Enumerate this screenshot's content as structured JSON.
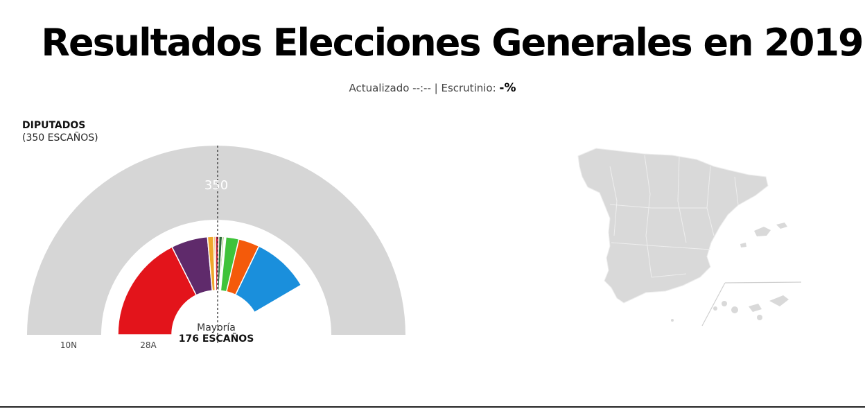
{
  "header": {
    "title": "Resultados Elecciones Generales en 2019",
    "updated_label": "Actualizado --:-- | Escrutinio:",
    "scrutiny_value": "-%"
  },
  "chamber": {
    "title": "DIPUTADOS",
    "subtitle": "(350 ESCAÑOS)",
    "total_label": "350",
    "majority_label": "Mayoría",
    "majority_seats_label": "176 ESCAÑOS",
    "ring_outer_label": "10N",
    "ring_inner_label": "28A"
  },
  "chart_data": {
    "type": "pie",
    "subtype": "parliament-hemicycle",
    "rings": [
      {
        "name": "10N",
        "total": 350,
        "slices": [
          {
            "value": 350,
            "color": "#d6d6d6"
          }
        ]
      },
      {
        "name": "28A",
        "total": 350,
        "slices": [
          {
            "value": 123,
            "color": "#e3141b"
          },
          {
            "value": 42,
            "color": "#5f2a6b"
          },
          {
            "value": 7,
            "color": "#f0a72b"
          },
          {
            "value": 2,
            "color": "#f4c97a"
          },
          {
            "value": 4,
            "color": "#c7283b"
          },
          {
            "value": 4,
            "color": "#2f6b3a"
          },
          {
            "value": 2,
            "color": "#7fbf3f"
          },
          {
            "value": 1,
            "color": "#b5d685"
          },
          {
            "value": 1,
            "color": "#5fb547"
          },
          {
            "value": 15,
            "color": "#3fc33a"
          },
          {
            "value": 24,
            "color": "#f45a0a"
          },
          {
            "value": 66,
            "color": "#1a8fdc"
          },
          {
            "value": 59,
            "color": "#ffffff"
          }
        ]
      }
    ],
    "majority": 176,
    "colors": {
      "empty": "#d6d6d6",
      "map_fill": "#d9d9d9",
      "map_border": "#eeeeee"
    }
  }
}
